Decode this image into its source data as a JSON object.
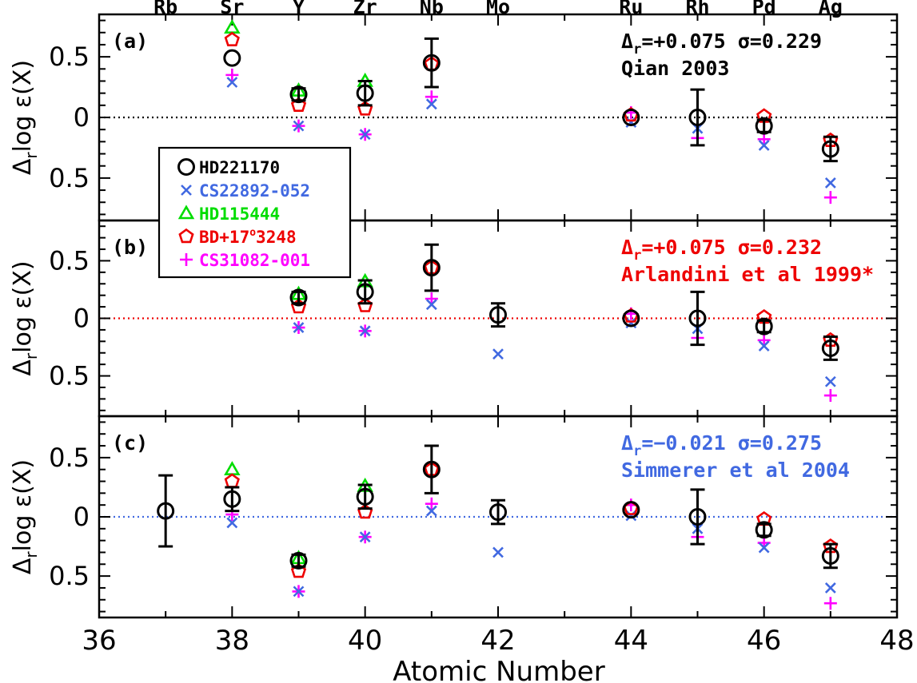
{
  "chart_data": {
    "type": "scatter",
    "xlabel": "Atomic Number",
    "ylabel": "Δ_r log ε(X)",
    "ylabel_parts": {
      "delta": "Δ",
      "sub": "r",
      "rest": "log ε(X)"
    },
    "xlim": [
      36,
      48
    ],
    "ylim": [
      -0.85,
      0.85
    ],
    "x_ticks": [
      "36",
      "38",
      "40",
      "42",
      "44",
      "46",
      "48"
    ],
    "y_ticks": [
      "0.5",
      "0",
      "0.5"
    ],
    "y_tick_values": [
      0.5,
      0,
      -0.5
    ],
    "elements": [
      {
        "z": 37,
        "symbol": "Rb"
      },
      {
        "z": 38,
        "symbol": "Sr"
      },
      {
        "z": 39,
        "symbol": "Y"
      },
      {
        "z": 40,
        "symbol": "Zr"
      },
      {
        "z": 41,
        "symbol": "Nb"
      },
      {
        "z": 42,
        "symbol": "Mo"
      },
      {
        "z": 44,
        "symbol": "Ru"
      },
      {
        "z": 45,
        "symbol": "Rh"
      },
      {
        "z": 46,
        "symbol": "Pd"
      },
      {
        "z": 47,
        "symbol": "Ag"
      }
    ],
    "legend": {
      "location": "upper-left",
      "entries": [
        {
          "name": "HD221170",
          "marker": "circle",
          "color": "#000000"
        },
        {
          "name": "CS22892-052",
          "marker": "x",
          "color": "#4169e1"
        },
        {
          "name": "HD115444",
          "marker": "triangle",
          "color": "#00dd00"
        },
        {
          "name": "BD+17°3248",
          "name_main": "BD+17",
          "name_sup": "o",
          "name_tail": "3248",
          "marker": "pentagon",
          "color": "#ee0000"
        },
        {
          "name": "CS31082-001",
          "marker": "plus",
          "color": "#ff00ff"
        }
      ]
    },
    "panels": [
      {
        "panel_label": "(a)",
        "delta_label": "Δ",
        "delta_sub": "r",
        "stat_text": "=+0.075  σ=0.229",
        "source": "Qian 2003",
        "color": "#000000",
        "series": {
          "HD221170": [
            {
              "x": 38,
              "y": 0.49
            },
            {
              "x": 39,
              "y": 0.19,
              "err": 0.05
            },
            {
              "x": 40,
              "y": 0.2,
              "err": 0.1
            },
            {
              "x": 41,
              "y": 0.45,
              "err": 0.2
            },
            {
              "x": 44,
              "y": 0.0
            },
            {
              "x": 45,
              "y": 0.0,
              "err": 0.23
            },
            {
              "x": 46,
              "y": -0.07,
              "err": 0.05
            },
            {
              "x": 47,
              "y": -0.26,
              "err": 0.1
            }
          ],
          "CS22892-052": [
            {
              "x": 38,
              "y": 0.29
            },
            {
              "x": 39,
              "y": -0.07
            },
            {
              "x": 40,
              "y": -0.14
            },
            {
              "x": 41,
              "y": 0.11
            },
            {
              "x": 44,
              "y": -0.04
            },
            {
              "x": 45,
              "y": -0.09
            },
            {
              "x": 46,
              "y": -0.23
            },
            {
              "x": 47,
              "y": -0.54
            }
          ],
          "HD115444": [
            {
              "x": 38,
              "y": 0.74
            },
            {
              "x": 39,
              "y": 0.22
            },
            {
              "x": 40,
              "y": 0.3
            }
          ],
          "BD+17°3248": [
            {
              "x": 38,
              "y": 0.64
            },
            {
              "x": 39,
              "y": 0.1
            },
            {
              "x": 40,
              "y": 0.07
            },
            {
              "x": 41,
              "y": 0.44
            },
            {
              "x": 44,
              "y": 0.02
            },
            {
              "x": 46,
              "y": 0.01
            },
            {
              "x": 47,
              "y": -0.19
            }
          ],
          "CS31082-001": [
            {
              "x": 38,
              "y": 0.35
            },
            {
              "x": 39,
              "y": -0.07
            },
            {
              "x": 40,
              "y": -0.14
            },
            {
              "x": 41,
              "y": 0.17
            },
            {
              "x": 44,
              "y": 0.04
            },
            {
              "x": 45,
              "y": -0.17
            },
            {
              "x": 46,
              "y": -0.18
            },
            {
              "x": 47,
              "y": -0.66
            }
          ]
        }
      },
      {
        "panel_label": "(b)",
        "delta_label": "Δ",
        "delta_sub": "r",
        "stat_text": "=+0.075  σ=0.232",
        "source": "Arlandini et al 1999*",
        "color": "#ee0000",
        "series": {
          "HD221170": [
            {
              "x": 39,
              "y": 0.18,
              "err": 0.05
            },
            {
              "x": 40,
              "y": 0.23,
              "err": 0.1
            },
            {
              "x": 41,
              "y": 0.44,
              "err": 0.2
            },
            {
              "x": 42,
              "y": 0.03,
              "err": 0.1
            },
            {
              "x": 44,
              "y": 0.0
            },
            {
              "x": 45,
              "y": 0.0,
              "err": 0.23
            },
            {
              "x": 46,
              "y": -0.07,
              "err": 0.05
            },
            {
              "x": 47,
              "y": -0.26,
              "err": 0.1
            }
          ],
          "CS22892-052": [
            {
              "x": 39,
              "y": -0.08
            },
            {
              "x": 40,
              "y": -0.11
            },
            {
              "x": 41,
              "y": 0.12
            },
            {
              "x": 42,
              "y": -0.31
            },
            {
              "x": 44,
              "y": -0.04
            },
            {
              "x": 45,
              "y": -0.09
            },
            {
              "x": 46,
              "y": -0.24
            },
            {
              "x": 47,
              "y": -0.55
            }
          ],
          "HD115444": [
            {
              "x": 39,
              "y": 0.21
            },
            {
              "x": 40,
              "y": 0.32
            }
          ],
          "BD+17°3248": [
            {
              "x": 39,
              "y": 0.1
            },
            {
              "x": 40,
              "y": 0.11
            },
            {
              "x": 41,
              "y": 0.44
            },
            {
              "x": 44,
              "y": 0.02
            },
            {
              "x": 46,
              "y": 0.01
            },
            {
              "x": 47,
              "y": -0.19
            }
          ],
          "CS31082-001": [
            {
              "x": 39,
              "y": -0.08
            },
            {
              "x": 40,
              "y": -0.11
            },
            {
              "x": 41,
              "y": 0.17
            },
            {
              "x": 44,
              "y": 0.04
            },
            {
              "x": 45,
              "y": -0.17
            },
            {
              "x": 46,
              "y": -0.19
            },
            {
              "x": 47,
              "y": -0.67
            }
          ]
        }
      },
      {
        "panel_label": "(c)",
        "delta_label": "Δ",
        "delta_sub": "r",
        "stat_text": "=−0.021  σ=0.275",
        "source": "Simmerer et al 2004",
        "color": "#4169e1",
        "series": {
          "HD221170": [
            {
              "x": 37,
              "y": 0.05,
              "err": 0.3
            },
            {
              "x": 38,
              "y": 0.15,
              "err": 0.1
            },
            {
              "x": 39,
              "y": -0.37,
              "err": 0.05
            },
            {
              "x": 40,
              "y": 0.17,
              "err": 0.1
            },
            {
              "x": 41,
              "y": 0.4,
              "err": 0.2
            },
            {
              "x": 42,
              "y": 0.04,
              "err": 0.1
            },
            {
              "x": 44,
              "y": 0.06
            },
            {
              "x": 45,
              "y": 0.0,
              "err": 0.23
            },
            {
              "x": 46,
              "y": -0.11,
              "err": 0.05
            },
            {
              "x": 47,
              "y": -0.33,
              "err": 0.1
            }
          ],
          "CS22892-052": [
            {
              "x": 38,
              "y": -0.05
            },
            {
              "x": 39,
              "y": -0.63
            },
            {
              "x": 40,
              "y": -0.17
            },
            {
              "x": 41,
              "y": 0.05
            },
            {
              "x": 42,
              "y": -0.3
            },
            {
              "x": 44,
              "y": 0.01
            },
            {
              "x": 45,
              "y": -0.1
            },
            {
              "x": 46,
              "y": -0.26
            },
            {
              "x": 47,
              "y": -0.6
            }
          ],
          "HD115444": [
            {
              "x": 38,
              "y": 0.4
            },
            {
              "x": 39,
              "y": -0.35
            },
            {
              "x": 40,
              "y": 0.26
            }
          ],
          "BD+17°3248": [
            {
              "x": 38,
              "y": 0.3
            },
            {
              "x": 39,
              "y": -0.46
            },
            {
              "x": 40,
              "y": 0.04
            },
            {
              "x": 41,
              "y": 0.4
            },
            {
              "x": 44,
              "y": 0.07
            },
            {
              "x": 46,
              "y": -0.02
            },
            {
              "x": 47,
              "y": -0.25
            }
          ],
          "CS31082-001": [
            {
              "x": 38,
              "y": 0.02
            },
            {
              "x": 39,
              "y": -0.63
            },
            {
              "x": 40,
              "y": -0.17
            },
            {
              "x": 41,
              "y": 0.11
            },
            {
              "x": 44,
              "y": 0.1
            },
            {
              "x": 45,
              "y": -0.17
            },
            {
              "x": 46,
              "y": -0.22
            },
            {
              "x": 47,
              "y": -0.73
            }
          ]
        }
      }
    ]
  }
}
